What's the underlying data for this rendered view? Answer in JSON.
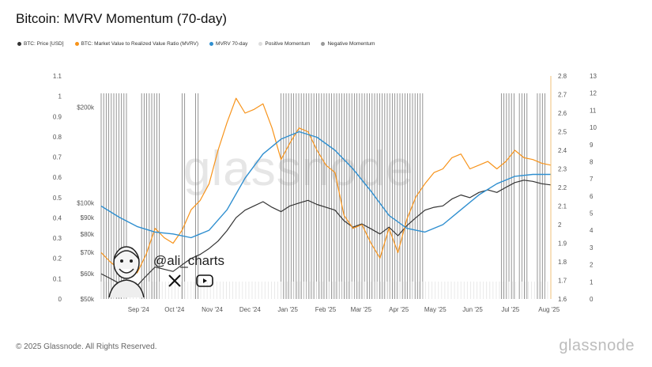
{
  "header": {
    "title": "Bitcoin: MVRV Momentum (70-day)"
  },
  "legend": [
    {
      "label": "BTC: Price [USD]",
      "color": "#333333"
    },
    {
      "label": "BTC: Market Value to Realized Value Ratio (MVRV)",
      "color": "#f7931a"
    },
    {
      "label": "MVRV 70-day",
      "color": "#2f8fd0"
    },
    {
      "label": "Positive Momentum",
      "color": "#dddddd"
    },
    {
      "label": "Negative Momentum",
      "color": "#999999"
    }
  ],
  "watermark": "glassnode",
  "overlay": {
    "handle": "@ali_charts",
    "x_icon": "x-logo-icon",
    "youtube_icon": "youtube-icon"
  },
  "footer": {
    "copyright": "© 2025 Glassnode. All Rights Reserved.",
    "brand": "glassnode"
  },
  "chart_data": {
    "type": "line",
    "title": "Bitcoin: MVRV Momentum (70-day)",
    "x_ticks": [
      "Sep '24",
      "Oct '24",
      "Nov '24",
      "Dec '24",
      "Jan '25",
      "Feb '25",
      "Mar '25",
      "Apr '25",
      "May '25",
      "Jun '25",
      "Jul '25",
      "Aug '25"
    ],
    "axes": {
      "left_oscillator": {
        "ticks": [
          "0",
          "0.1",
          "0.2",
          "0.3",
          "0.4",
          "0.5",
          "0.6",
          "0.7",
          "0.8",
          "0.9",
          "1",
          "1.1"
        ],
        "range": [
          0,
          1.1
        ]
      },
      "left_price": {
        "ticks": [
          "$50k",
          "$60k",
          "$70k",
          "$80k",
          "$90k",
          "$100k",
          "$200k"
        ],
        "scale": "log"
      },
      "right_mvrv": {
        "ticks": [
          "1.6",
          "1.7",
          "1.8",
          "1.9",
          "2",
          "2.1",
          "2.2",
          "2.3",
          "2.4",
          "2.5",
          "2.6",
          "2.7",
          "2.8"
        ],
        "range": [
          1.6,
          2.8
        ]
      },
      "right_far": {
        "ticks": [
          "0",
          "1",
          "2",
          "3",
          "4",
          "5",
          "6",
          "7",
          "8",
          "9",
          "10",
          "11",
          "12",
          "13"
        ],
        "range": [
          0,
          13
        ]
      }
    },
    "x_range": [
      0,
      1
    ],
    "series": [
      {
        "name": "BTC: Price [USD]",
        "color": "#333333",
        "x": [
          0,
          0.02,
          0.04,
          0.06,
          0.08,
          0.1,
          0.12,
          0.14,
          0.16,
          0.18,
          0.2,
          0.22,
          0.24,
          0.26,
          0.28,
          0.3,
          0.32,
          0.34,
          0.36,
          0.38,
          0.4,
          0.42,
          0.44,
          0.46,
          0.48,
          0.5,
          0.52,
          0.54,
          0.56,
          0.58,
          0.6,
          0.62,
          0.64,
          0.66,
          0.68,
          0.7,
          0.72,
          0.74,
          0.76,
          0.78,
          0.8,
          0.82,
          0.84,
          0.86,
          0.88,
          0.9,
          0.92,
          0.94,
          0.96,
          0.98,
          1.0
        ],
        "y": [
          60000,
          58000,
          56000,
          57000,
          55000,
          59000,
          63000,
          62000,
          61000,
          64000,
          67000,
          69000,
          72000,
          76000,
          82000,
          90000,
          95000,
          98000,
          101000,
          97000,
          94000,
          98000,
          100000,
          102000,
          99000,
          97000,
          95000,
          88000,
          84000,
          86000,
          83000,
          80000,
          84000,
          79000,
          85000,
          90000,
          95000,
          97000,
          98000,
          103000,
          106000,
          104000,
          108000,
          110000,
          108000,
          112000,
          116000,
          118000,
          117000,
          115000,
          114000
        ]
      },
      {
        "name": "BTC: Market Value to Realized Value Ratio (MVRV)",
        "color": "#f7931a",
        "x": [
          0,
          0.02,
          0.04,
          0.06,
          0.08,
          0.1,
          0.12,
          0.14,
          0.16,
          0.18,
          0.2,
          0.22,
          0.24,
          0.26,
          0.28,
          0.3,
          0.32,
          0.34,
          0.36,
          0.38,
          0.4,
          0.42,
          0.44,
          0.46,
          0.48,
          0.5,
          0.52,
          0.54,
          0.56,
          0.58,
          0.6,
          0.62,
          0.64,
          0.66,
          0.68,
          0.7,
          0.72,
          0.74,
          0.76,
          0.78,
          0.8,
          0.82,
          0.84,
          0.86,
          0.88,
          0.9,
          0.92,
          0.94,
          0.96,
          0.98,
          1.0
        ],
        "y": [
          1.85,
          1.8,
          1.76,
          1.79,
          1.74,
          1.84,
          1.98,
          1.93,
          1.9,
          1.97,
          2.08,
          2.13,
          2.22,
          2.4,
          2.55,
          2.68,
          2.6,
          2.62,
          2.65,
          2.52,
          2.35,
          2.44,
          2.52,
          2.5,
          2.4,
          2.32,
          2.28,
          2.05,
          1.98,
          2.0,
          1.9,
          1.82,
          1.98,
          1.85,
          2.03,
          2.15,
          2.22,
          2.28,
          2.3,
          2.36,
          2.38,
          2.3,
          2.32,
          2.34,
          2.3,
          2.34,
          2.4,
          2.36,
          2.35,
          2.33,
          2.32
        ]
      },
      {
        "name": "MVRV 70-day",
        "color": "#2f8fd0",
        "x": [
          0,
          0.04,
          0.08,
          0.12,
          0.16,
          0.2,
          0.24,
          0.28,
          0.32,
          0.36,
          0.4,
          0.44,
          0.48,
          0.52,
          0.56,
          0.6,
          0.64,
          0.68,
          0.72,
          0.76,
          0.8,
          0.84,
          0.88,
          0.92,
          0.96,
          1.0
        ],
        "y": [
          2.1,
          2.04,
          1.99,
          1.96,
          1.95,
          1.93,
          1.97,
          2.08,
          2.25,
          2.38,
          2.46,
          2.5,
          2.47,
          2.4,
          2.3,
          2.18,
          2.05,
          1.98,
          1.96,
          2.0,
          2.08,
          2.16,
          2.22,
          2.26,
          2.27,
          2.27
        ]
      }
    ],
    "negative_momentum_bands": [
      [
        0.0,
        0.06
      ],
      [
        0.09,
        0.13
      ],
      [
        0.18,
        0.19
      ],
      [
        0.21,
        0.22
      ],
      [
        0.4,
        0.72
      ],
      [
        0.89,
        0.92
      ],
      [
        0.93,
        0.95
      ],
      [
        0.97,
        0.99
      ]
    ],
    "grid": false,
    "legend_position": "top-left"
  }
}
